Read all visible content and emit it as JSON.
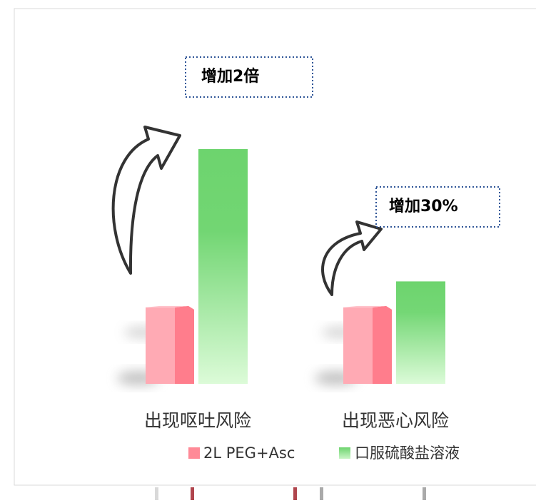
{
  "chart_data": {
    "type": "bar",
    "categories": [
      "出现呕吐风险",
      "出现恶心风险"
    ],
    "series": [
      {
        "name": "2L PEG+Asc",
        "color": "#ff8a97",
        "values": [
          1,
          1
        ]
      },
      {
        "name": "口服硫酸盐溶液",
        "color": "#6dd46e",
        "values": [
          3.07,
          1.34
        ]
      }
    ],
    "annotations": [
      "增加2倍",
      "增加30%"
    ]
  }
}
